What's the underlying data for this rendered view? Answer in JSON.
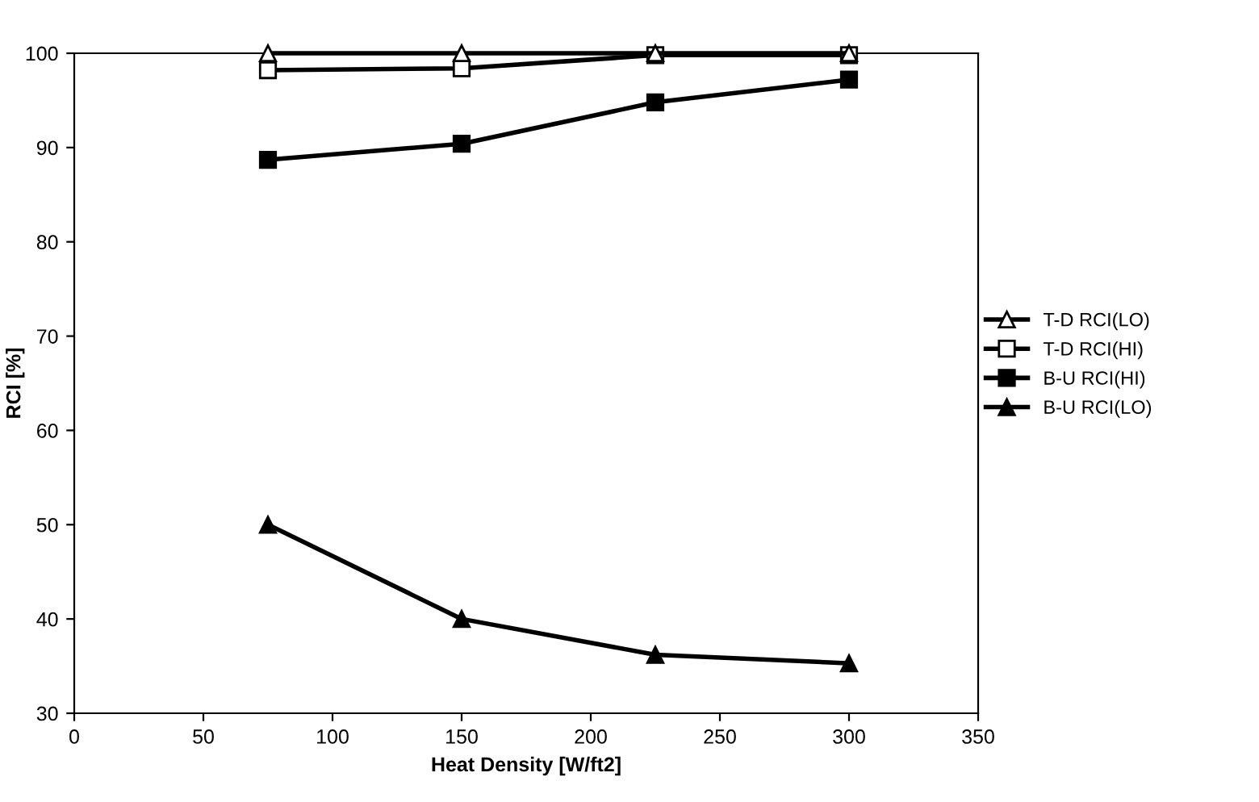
{
  "chart_data": {
    "type": "line",
    "xlabel": "Heat Density [W/ft2]",
    "ylabel": "RCI [%]",
    "x": [
      75,
      150,
      225,
      300
    ],
    "series": [
      {
        "name": "T-D RCI(LO)",
        "color": "#000000",
        "marker": "triangle",
        "values": [
          100,
          100,
          100,
          100
        ]
      },
      {
        "name": "T-D RCI(HI)",
        "color": "#000000",
        "marker": "square",
        "values": [
          98.2,
          98.4,
          99.8,
          99.8
        ]
      },
      {
        "name": "B-U RCI(HI)",
        "color": "#000000",
        "marker": "square",
        "values": [
          88.7,
          90.4,
          94.8,
          97.2
        ]
      },
      {
        "name": "B-U RCI(LO)",
        "color": "#000000",
        "marker": "triangle",
        "values": [
          50,
          40,
          36.2,
          35.3
        ]
      }
    ],
    "xlim": [
      0,
      350
    ],
    "xticks": [
      0,
      50,
      100,
      150,
      200,
      250,
      300,
      350
    ],
    "ylim": [
      30,
      100
    ],
    "yticks": [
      30,
      40,
      50,
      60,
      70,
      80,
      90,
      100
    ],
    "legend": "right",
    "line_style": "solid"
  }
}
